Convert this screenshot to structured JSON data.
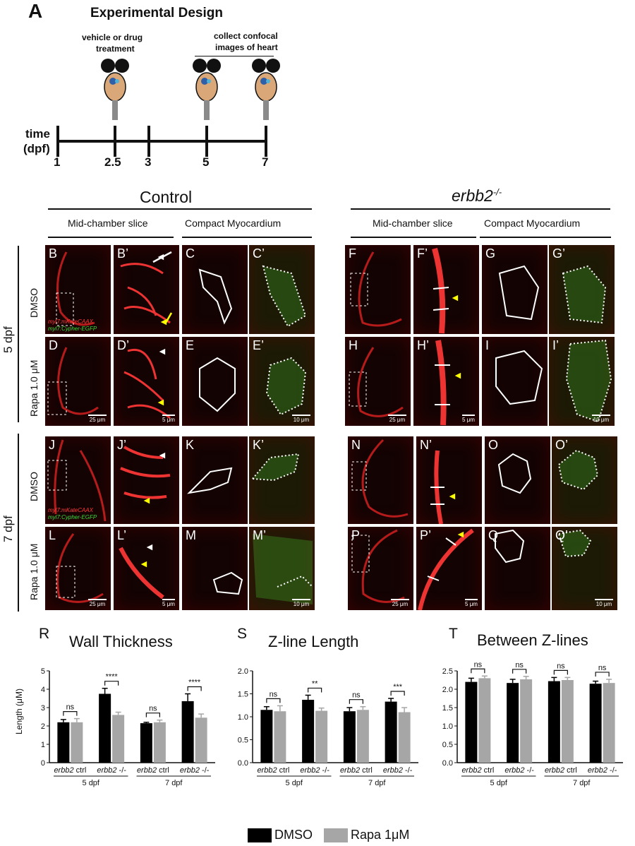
{
  "panel_a": {
    "letter": "A",
    "title": "Experimental Design",
    "treatment_label_1": "vehicle or drug",
    "treatment_label_2": "treatment",
    "collect_label_1": "collect confocal",
    "collect_label_2": "images of heart",
    "time_label_1": "time",
    "time_label_2": "(dpf)",
    "ticks": [
      "1",
      "2.5",
      "3",
      "5",
      "7"
    ]
  },
  "headers": {
    "control": "Control",
    "erbb2": "erbb2",
    "erbb2_sup": "-/-",
    "mid_chamber": "Mid-chamber slice",
    "compact": "Compact Myocardium"
  },
  "rows": {
    "dpf5": "5 dpf",
    "dpf7": "7 dpf",
    "dmso": "DMSO",
    "rapa": "Rapa 1.0 μM"
  },
  "markers": {
    "red": "myl7:mKateCAAX",
    "green": "myl7:Cypher-EGFP"
  },
  "panels": {
    "B": "B",
    "B2": "B’",
    "C": "C",
    "C2": "C’",
    "D": "D",
    "D2": "D’",
    "E": "E",
    "E2": "E’",
    "F": "F",
    "F2": "F’",
    "G": "G",
    "G2": "G’",
    "H": "H",
    "H2": "H’",
    "I": "I",
    "I2": "I’",
    "J": "J",
    "J2": "J’",
    "K": "K",
    "K2": "K’",
    "L": "L",
    "L2": "L’",
    "M": "M",
    "M2": "M’",
    "N": "N",
    "N2": "N’",
    "O": "O",
    "O2": "O’",
    "P": "P",
    "P2": "P’",
    "Q": "Q",
    "Q2": "Q’"
  },
  "scalebars": {
    "s25": "25 μm",
    "s5": "5 μm",
    "s10": "10 μm"
  },
  "legend": {
    "dmso": "DMSO",
    "rapa": "Rapa 1μM",
    "dmso_color": "#000000",
    "rapa_color": "#a6a6a6"
  },
  "chart_data": [
    {
      "panel": "R",
      "type": "bar",
      "title": "Wall Thickness",
      "ylabel": "Length (μM)",
      "ylim": [
        0,
        5
      ],
      "yticks": [
        "0",
        "1",
        "2",
        "3",
        "4",
        "5"
      ],
      "categories": [
        "erbb2 ctrl",
        "erbb2 -/-",
        "erbb2 ctrl",
        "erbb2 -/-"
      ],
      "groups": [
        "5 dpf",
        "7 dpf"
      ],
      "series": [
        {
          "name": "DMSO",
          "values": [
            2.2,
            3.75,
            2.15,
            3.35
          ],
          "errors": [
            0.15,
            0.3,
            0.05,
            0.4
          ]
        },
        {
          "name": "Rapa 1μM",
          "values": [
            2.2,
            2.6,
            2.2,
            2.45
          ],
          "errors": [
            0.2,
            0.15,
            0.12,
            0.2
          ]
        }
      ],
      "significance": [
        "ns",
        "****",
        "ns",
        "****"
      ]
    },
    {
      "panel": "S",
      "type": "bar",
      "title": "Z-line Length",
      "ylabel": "",
      "ylim": [
        0,
        2.0
      ],
      "yticks": [
        "0.0",
        "0.5",
        "1.0",
        "1.5",
        "2.0"
      ],
      "categories": [
        "erbb2 ctrl",
        "erbb2 -/-",
        "erbb2 ctrl",
        "erbb2 -/-"
      ],
      "groups": [
        "5 dpf",
        "7 dpf"
      ],
      "series": [
        {
          "name": "DMSO",
          "values": [
            1.15,
            1.37,
            1.12,
            1.33
          ],
          "errors": [
            0.07,
            0.1,
            0.08,
            0.07
          ]
        },
        {
          "name": "Rapa 1μM",
          "values": [
            1.12,
            1.13,
            1.15,
            1.1
          ],
          "errors": [
            0.12,
            0.06,
            0.07,
            0.1
          ]
        }
      ],
      "significance": [
        "ns",
        "**",
        "ns",
        "***"
      ]
    },
    {
      "panel": "T",
      "type": "bar",
      "title": "Between Z-lines",
      "ylabel": "",
      "ylim": [
        0,
        2.5
      ],
      "yticks": [
        "0.0",
        "0.5",
        "1.0",
        "1.5",
        "2.0",
        "2.5"
      ],
      "categories": [
        "erbb2 ctrl",
        "erbb2 -/-",
        "erbb2 ctrl",
        "erbb2 -/-"
      ],
      "groups": [
        "5 dpf",
        "7 dpf"
      ],
      "series": [
        {
          "name": "DMSO",
          "values": [
            2.2,
            2.17,
            2.22,
            2.15
          ],
          "errors": [
            0.1,
            0.1,
            0.1,
            0.07
          ]
        },
        {
          "name": "Rapa 1μM",
          "values": [
            2.3,
            2.27,
            2.25,
            2.17
          ],
          "errors": [
            0.06,
            0.08,
            0.07,
            0.1
          ]
        }
      ],
      "significance": [
        "ns",
        "ns",
        "ns",
        "ns"
      ]
    }
  ]
}
